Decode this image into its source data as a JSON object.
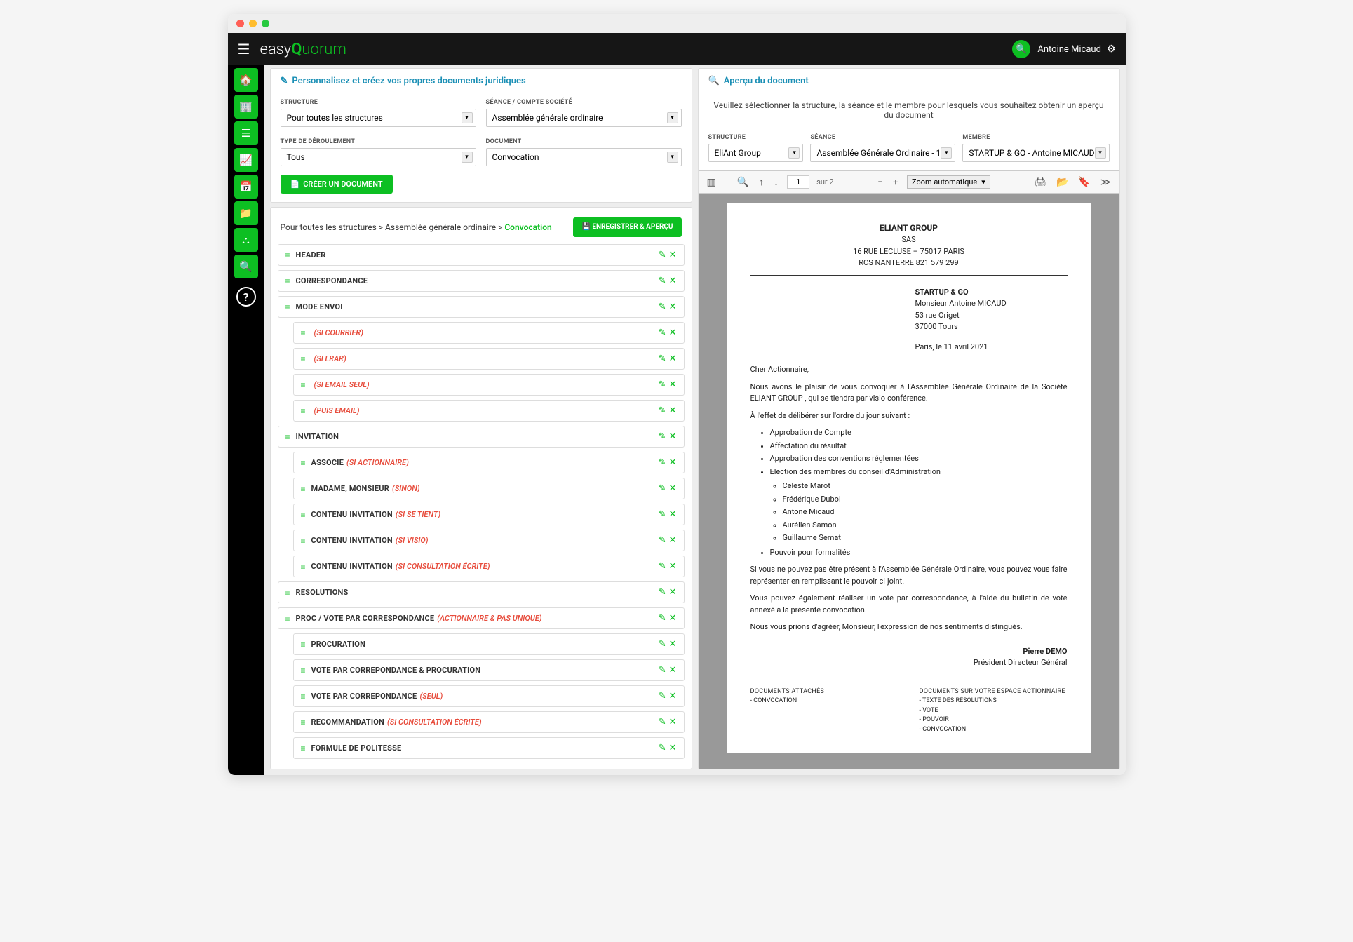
{
  "topbar": {
    "logo_a": "easy",
    "logo_b": "Q",
    "logo_c": "uorum",
    "user": "Antoine Micaud"
  },
  "left": {
    "title": "Personnalisez et créez vos propres documents juridiques",
    "filters": {
      "structure": {
        "label": "STRUCTURE",
        "value": "Pour toutes les structures"
      },
      "seance": {
        "label": "SÉANCE / COMPTE SOCIÉTÉ",
        "value": "Assemblée générale ordinaire"
      },
      "type": {
        "label": "TYPE DE DÉROULEMENT",
        "value": "Tous"
      },
      "document": {
        "label": "DOCUMENT",
        "value": "Convocation"
      }
    },
    "create_btn": "CRÉER UN DOCUMENT",
    "breadcrumb": {
      "a": "Pour toutes les structures",
      "b": "Assemblée générale ordinaire",
      "c": "Convocation"
    },
    "save_btn": "ENREGISTRER & APERÇU",
    "sections": [
      {
        "label": "HEADER"
      },
      {
        "label": "CORRESPONDANCE"
      },
      {
        "label": "MODE ENVOI"
      },
      {
        "label": "",
        "cond": "(SI COURRIER)",
        "child": true
      },
      {
        "label": "",
        "cond": "(SI LRAR)",
        "child": true
      },
      {
        "label": "",
        "cond": "(SI EMAIL SEUL)",
        "child": true
      },
      {
        "label": "",
        "cond": "(PUIS EMAIL)",
        "child": true
      },
      {
        "label": "INVITATION"
      },
      {
        "label": "ASSOCIE",
        "cond": "(SI ACTIONNAIRE)",
        "child": true
      },
      {
        "label": "MADAME, MONSIEUR",
        "cond": "(SINON)",
        "child": true
      },
      {
        "label": "CONTENU INVITATION",
        "cond": "(SI SE TIENT)",
        "child": true
      },
      {
        "label": "CONTENU INVITATION",
        "cond": "(SI VISIO)",
        "child": true
      },
      {
        "label": "CONTENU INVITATION",
        "cond": "(SI CONSULTATION ÉCRITE)",
        "child": true
      },
      {
        "label": "RESOLUTIONS"
      },
      {
        "label": "PROC / VOTE PAR CORRESPONDANCE",
        "cond": "(ACTIONNAIRE & PAS UNIQUE)"
      },
      {
        "label": "PROCURATION",
        "child": true
      },
      {
        "label": "VOTE PAR CORREPONDANCE & PROCURATION",
        "child": true
      },
      {
        "label": "VOTE PAR CORREPONDANCE",
        "cond": "(SEUL)",
        "child": true
      },
      {
        "label": "RECOMMANDATION",
        "cond": "(SI CONSULTATION ÉCRITE)",
        "child": true
      },
      {
        "label": "FORMULE DE POLITESSE",
        "child": true
      }
    ]
  },
  "right": {
    "title": "Aperçu du document",
    "hint": "Veuillez sélectionner la structure, la séance et le membre pour lesquels vous souhaitez obtenir un aperçu du document",
    "filters": {
      "structure": {
        "label": "STRUCTURE",
        "value": "EliAnt Group"
      },
      "seance": {
        "label": "SÉANCE",
        "value": "Assemblée Générale Ordinaire - 1"
      },
      "membre": {
        "label": "MEMBRE",
        "value": "STARTUP & GO - Antoine MICAUD"
      }
    },
    "pdf": {
      "page": "1",
      "total": "sur 2",
      "zoom": "Zoom automatique"
    }
  },
  "doc": {
    "company": "ELIANT GROUP",
    "form": "SAS",
    "addr": "16 RUE LECLUSE – 75017 PARIS",
    "rcs": "RCS NANTERRE 821 579 299",
    "r_company": "STARTUP & GO",
    "r_name": "Monsieur Antoine MICAUD",
    "r_street": "53 rue Origet",
    "r_city": "37000 Tours",
    "date": "Paris, le 11 avril 2021",
    "salut": "Cher Actionnaire,",
    "p1": "Nous avons le plaisir de vous convoquer à l'Assemblée Générale Ordinaire de la Société ELIANT GROUP , qui se tiendra par visio-conférence.",
    "p2": "À l'effet de délibérer sur l'ordre du jour suivant :",
    "items": [
      "Approbation de Compte",
      "Affectation du résultat",
      "Approbation des conventions réglementées",
      "Election des membres du conseil d'Administration"
    ],
    "members": [
      "Celeste Marot",
      "Frédérique Dubol",
      "Antone Micaud",
      "Aurélien Samon",
      "Guillaume Semat"
    ],
    "item_last": "Pouvoir pour formalités",
    "p3": "Si vous ne pouvez pas être présent à l'Assemblée Générale Ordinaire, vous pouvez vous faire représenter en remplissant le pouvoir ci-joint.",
    "p4": "Vous pouvez également réaliser un vote par correspondance, à l'aide du bulletin de vote annexé à la présente convocation.",
    "p5": "Nous vous prions d'agréer, Monsieur, l'expression de nos sentiments distingués.",
    "sig_name": "Pierre DEMO",
    "sig_title": "Président Directeur Général",
    "att1_h": "DOCUMENTS ATTACHÉS",
    "att1": [
      "- CONVOCATION"
    ],
    "att2_h": "DOCUMENTS SUR VOTRE ESPACE ACTIONNAIRE",
    "att2": [
      "- TEXTE DES RÉSOLUTIONS",
      "- VOTE",
      "- POUVOIR",
      "- CONVOCATION"
    ]
  }
}
